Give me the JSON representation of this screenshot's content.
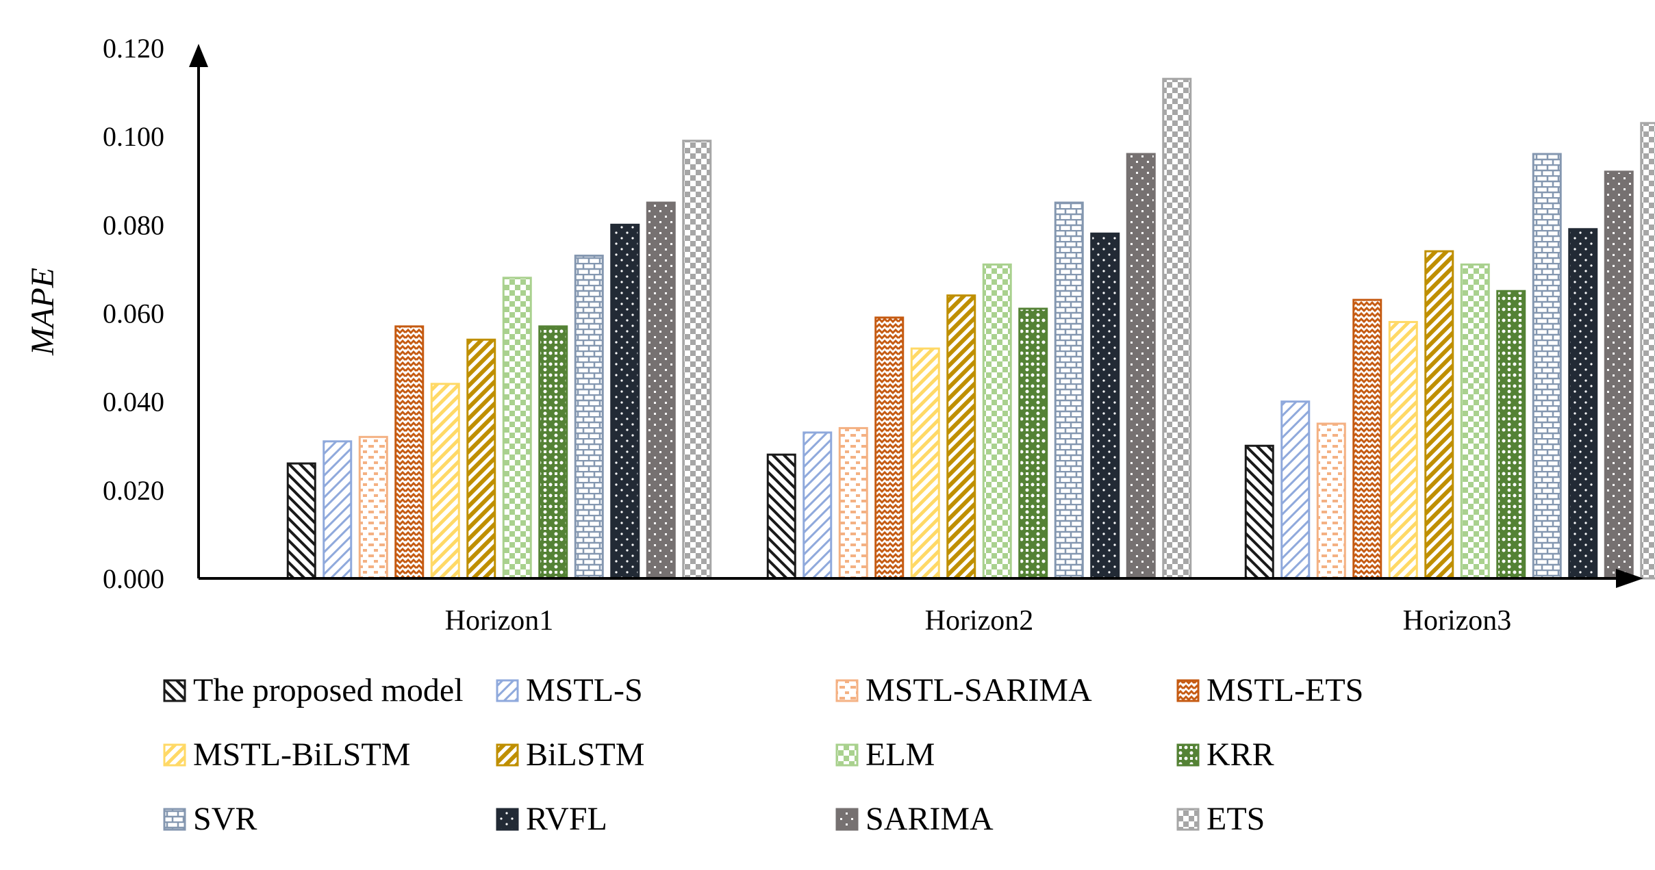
{
  "chart_data": {
    "type": "bar",
    "title": "",
    "xlabel": "",
    "ylabel": "MAPE",
    "ylim": [
      0,
      0.12
    ],
    "yticks": [
      "0.000",
      "0.020",
      "0.040",
      "0.060",
      "0.080",
      "0.100",
      "0.120"
    ],
    "categories": [
      "Horizon1",
      "Horizon2",
      "Horizon3"
    ],
    "legend_position": "bottom",
    "series": [
      {
        "name": "The proposed model",
        "color": "#1a1a1a",
        "pattern": "diag-back",
        "values": [
          0.026,
          0.028,
          0.03
        ]
      },
      {
        "name": "MSTL-S",
        "color": "#8fa9dc",
        "pattern": "diag-fwd",
        "values": [
          0.031,
          0.033,
          0.04
        ]
      },
      {
        "name": "MSTL-SARIMA",
        "color": "#f4b183",
        "pattern": "dashes",
        "values": [
          0.032,
          0.034,
          0.035
        ]
      },
      {
        "name": "MSTL-ETS",
        "color": "#c55a11",
        "pattern": "zigzag",
        "values": [
          0.057,
          0.059,
          0.063
        ]
      },
      {
        "name": "MSTL-BiLSTM",
        "color": "#ffd966",
        "pattern": "diag-fwd-light",
        "values": [
          0.044,
          0.052,
          0.058
        ]
      },
      {
        "name": "BiLSTM",
        "color": "#bf8f00",
        "pattern": "diag-fwd-bold",
        "values": [
          0.054,
          0.064,
          0.074
        ]
      },
      {
        "name": "ELM",
        "color": "#a9d18e",
        "pattern": "check-small",
        "values": [
          0.068,
          0.071,
          0.071
        ]
      },
      {
        "name": "KRR",
        "color": "#548235",
        "pattern": "dots-cross",
        "values": [
          0.057,
          0.061,
          0.065
        ]
      },
      {
        "name": "SVR",
        "color": "#8497b0",
        "pattern": "brick",
        "values": [
          0.073,
          0.085,
          0.096
        ]
      },
      {
        "name": "RVFL",
        "color": "#222a35",
        "pattern": "dots",
        "values": [
          0.08,
          0.078,
          0.079
        ]
      },
      {
        "name": "SARIMA",
        "color": "#767171",
        "pattern": "grid-dots",
        "values": [
          0.085,
          0.096,
          0.092
        ]
      },
      {
        "name": "ETS",
        "color": "#a6a6a6",
        "pattern": "check-large",
        "values": [
          0.099,
          0.113,
          0.103
        ]
      }
    ]
  }
}
